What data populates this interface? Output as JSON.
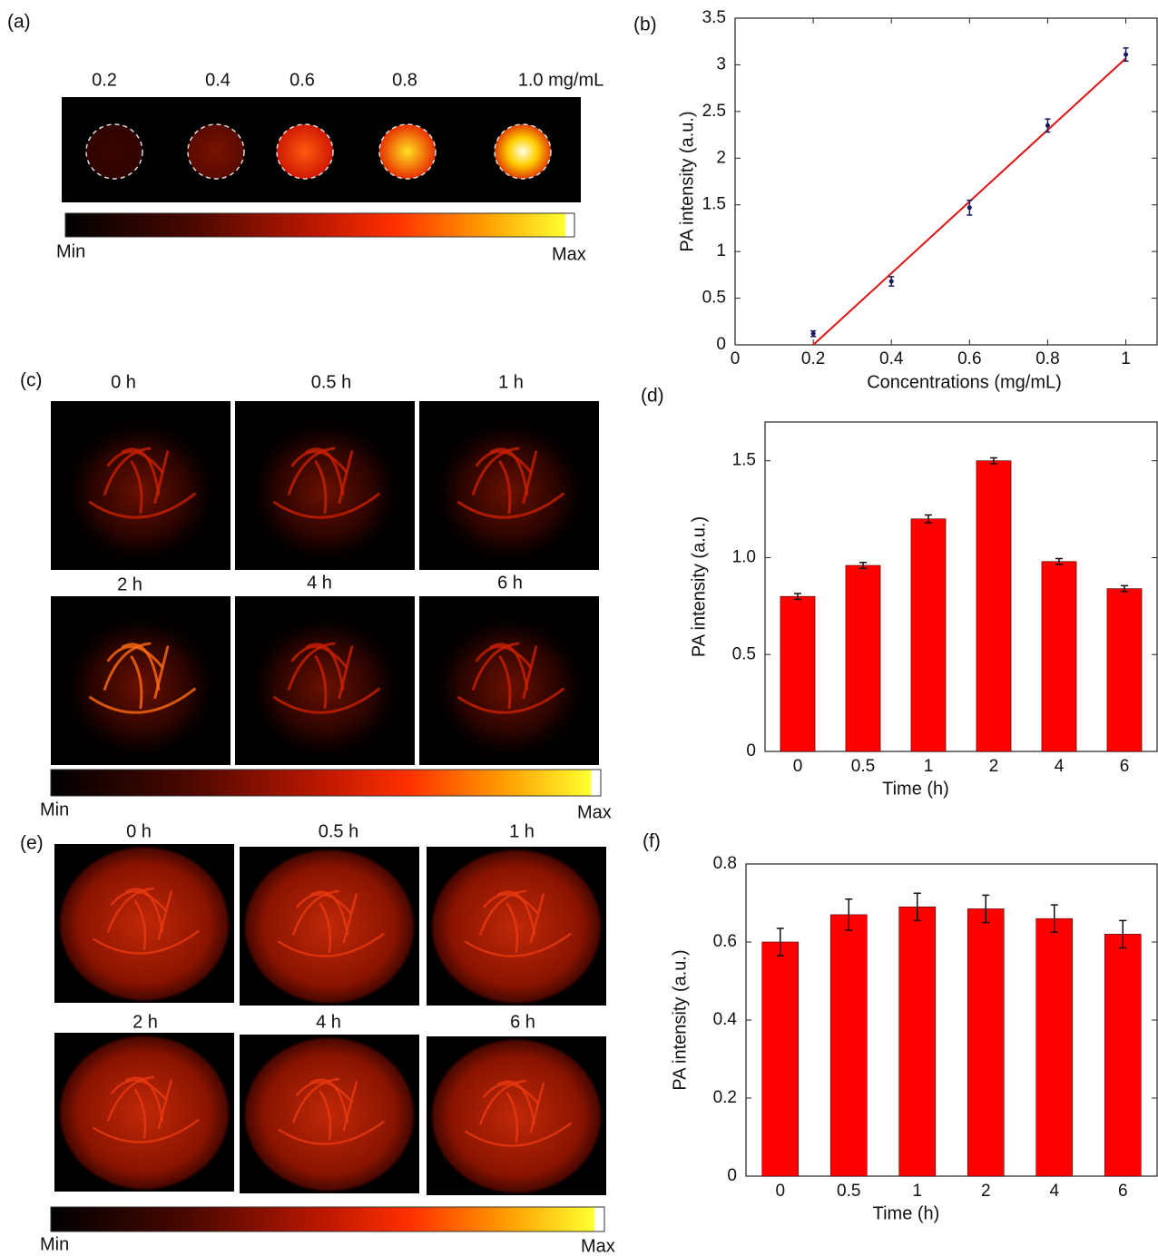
{
  "images": {
    "a": {
      "label": "(a)",
      "titles": [
        "0.2",
        "0.4",
        "0.6",
        "0.8",
        "1.0 mg/mL"
      ],
      "colorbar": {
        "min": "Min",
        "max": "Max"
      }
    },
    "c": {
      "label": "(c)",
      "titles": [
        "0 h",
        "0.5 h",
        "1 h",
        "2 h",
        "4 h",
        "6 h"
      ],
      "colorbar": {
        "min": "Min",
        "max": "Max"
      }
    },
    "e": {
      "label": "(e)",
      "titles": [
        "0 h",
        "0.5 h",
        "1 h",
        "2 h",
        "4 h",
        "6 h"
      ],
      "colorbar": {
        "min": "Min",
        "max": "Max"
      }
    }
  },
  "chart_data": [
    {
      "type": "scatter",
      "panel": "(b)",
      "xlabel": "Concentrations (mg/mL)",
      "ylabel": "PA intensity (a.u.)",
      "x": [
        0.2,
        0.4,
        0.6,
        0.8,
        1
      ],
      "values": [
        0.12,
        0.68,
        1.47,
        2.35,
        3.11
      ],
      "errors": [
        0.03,
        0.05,
        0.08,
        0.07,
        0.07
      ],
      "color": "#1a1a5e",
      "fit": {
        "x": [
          0.2,
          1
        ],
        "values": [
          0,
          3.07
        ],
        "color": "#e01010"
      },
      "xlim": [
        0,
        1.08
      ],
      "xticks": [
        0,
        0.2,
        0.4,
        0.6,
        0.8,
        1
      ],
      "ylim": [
        0,
        3.5
      ],
      "yticks": [
        0,
        0.5,
        1,
        1.5,
        2,
        2.5,
        3,
        3.5
      ]
    },
    {
      "type": "bar",
      "panel": "(d)",
      "xlabel": "Time (h)",
      "ylabel": "PA intensity (a.u.)",
      "categories": [
        "0",
        "0.5",
        "1",
        "2",
        "4",
        "6"
      ],
      "values": [
        0.8,
        0.96,
        1.2,
        1.5,
        0.98,
        0.84
      ],
      "errors": [
        0.015,
        0.015,
        0.02,
        0.015,
        0.015,
        0.015
      ],
      "color": "#ff0000",
      "ylim": [
        0,
        1.7
      ],
      "yticks": [
        0,
        0.5,
        {
          "value": 1,
          "label": "1.0"
        },
        1.5
      ]
    },
    {
      "type": "bar",
      "panel": "(f)",
      "xlabel": "Time (h)",
      "ylabel": "PA intensity (a.u.)",
      "categories": [
        "0",
        "0.5",
        "1",
        "2",
        "4",
        "6"
      ],
      "values": [
        0.6,
        0.67,
        0.69,
        0.685,
        0.66,
        0.62
      ],
      "errors": [
        0.035,
        0.04,
        0.035,
        0.035,
        0.035,
        0.035
      ],
      "color": "#ff0000",
      "ylim": [
        0,
        0.8
      ],
      "yticks": [
        0,
        0.2,
        0.4,
        0.6,
        0.8
      ]
    }
  ]
}
